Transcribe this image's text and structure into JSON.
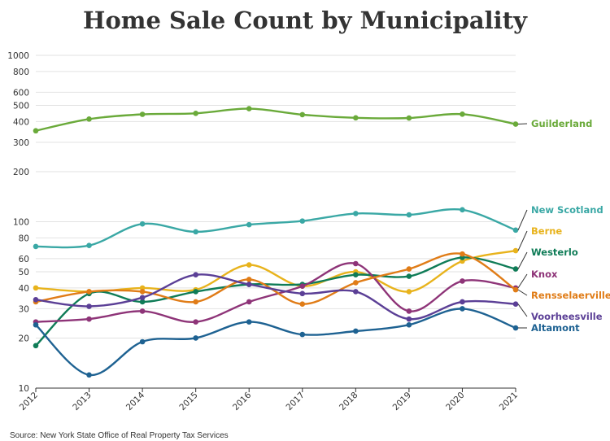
{
  "chart_data": {
    "type": "line",
    "title": "Home Sale Count by Municipality",
    "source": "Source: New York State Office of Real Property Tax Services",
    "xlabel": "",
    "ylabel": "",
    "y_scale": "log",
    "ylim": [
      10,
      1000
    ],
    "y_ticks": [
      10,
      20,
      30,
      40,
      50,
      60,
      80,
      100,
      200,
      300,
      400,
      500,
      600,
      800,
      1000
    ],
    "y_tick_labels": [
      "10",
      "20",
      "30",
      "40",
      "50",
      "60",
      "80",
      "100",
      "200",
      "300",
      "400",
      "500",
      "600",
      "800",
      "1000"
    ],
    "x": [
      "2012",
      "2013",
      "2014",
      "2015",
      "2016",
      "2017",
      "2018",
      "2019",
      "2020",
      "2021"
    ],
    "grid": true,
    "legend": "direct labels at right end of each line",
    "series": [
      {
        "name": "Guilderland",
        "color": "#6aaa3a",
        "values": [
          352,
          414,
          442,
          448,
          478,
          440,
          421,
          420,
          443,
          386
        ]
      },
      {
        "name": "New Scotland",
        "color": "#3aa8a5",
        "values": [
          71,
          72,
          97,
          87,
          96,
          101,
          112,
          110,
          118,
          89
        ]
      },
      {
        "name": "Berne",
        "color": "#e8b31c",
        "values": [
          40,
          38,
          40,
          39,
          55,
          41,
          50,
          38,
          58,
          67
        ]
      },
      {
        "name": "Westerlo",
        "color": "#0f7c57",
        "values": [
          18,
          37,
          33,
          38,
          42,
          42,
          48,
          47,
          61,
          52
        ]
      },
      {
        "name": "Knox",
        "color": "#8e3478",
        "values": [
          25,
          26,
          29,
          25,
          33,
          41,
          56,
          29,
          44,
          40
        ]
      },
      {
        "name": "Rensselaerville",
        "color": "#e07c17",
        "values": [
          33,
          38,
          38,
          33,
          45,
          32,
          43,
          52,
          64,
          39
        ]
      },
      {
        "name": "Voorheesville",
        "color": "#5b3f96",
        "values": [
          34,
          31,
          35,
          48,
          42,
          37,
          38,
          26,
          33,
          32
        ]
      },
      {
        "name": "Altamont",
        "color": "#1e6292",
        "values": [
          24,
          12,
          19,
          20,
          25,
          21,
          22,
          24,
          30,
          23
        ]
      }
    ]
  }
}
